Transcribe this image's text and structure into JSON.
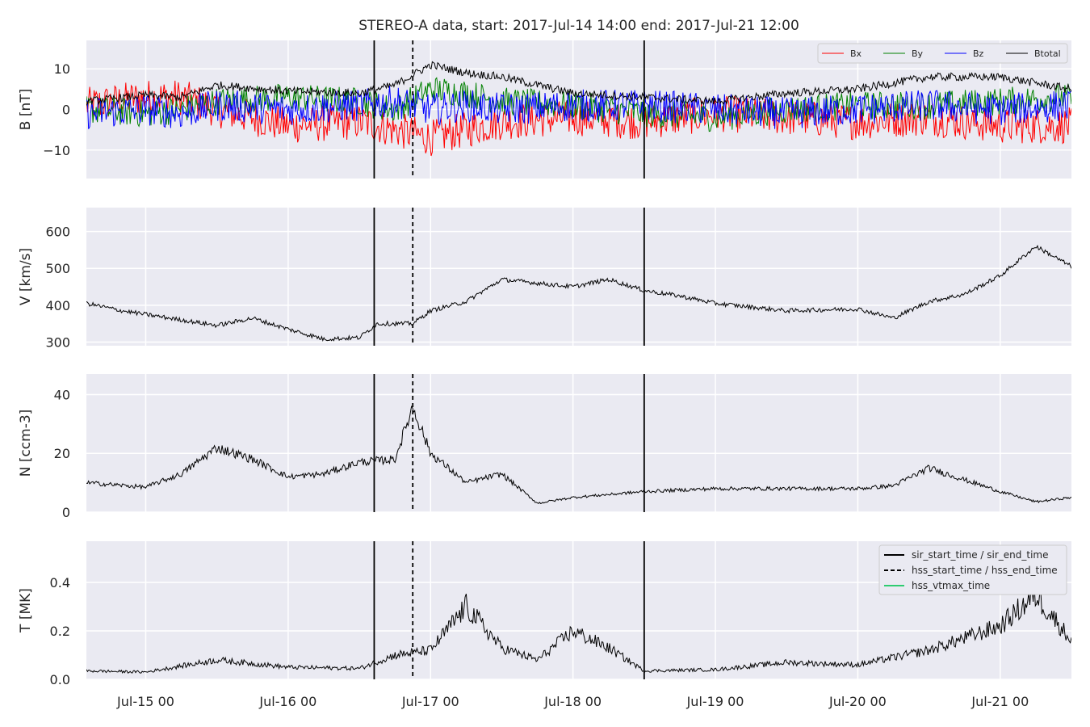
{
  "figure_title": "STEREO-A data, start: 2017-Jul-14 14:00  end: 2017-Jul-21 12:00",
  "x_tick_labels": [
    "Jul-15 00",
    "Jul-16 00",
    "Jul-17 00",
    "Jul-18 00",
    "Jul-19 00",
    "Jul-20 00",
    "Jul-21 00"
  ],
  "colors": {
    "Bx": "#ff0000",
    "By": "#008000",
    "Bz": "#0000ff",
    "Btotal": "#000000",
    "hss_vtmax": "#2ecc71",
    "grid": "#ffffff",
    "panel_bg": "#eaeaf2"
  },
  "markers": {
    "sir_start_time": "2017-07-16 14:30",
    "hss_start_time": "2017-07-16 21:00",
    "sir_end_time": "2017-07-18 12:00"
  },
  "chart_data": [
    {
      "type": "line",
      "ylabel": "B [nT]",
      "ylim": [
        -17,
        17
      ],
      "yticks": [
        -10,
        0,
        10
      ],
      "legend_position": "top-right",
      "legend": [
        "Bx",
        "By",
        "Bz",
        "Btotal"
      ],
      "series": [
        {
          "name": "Bx",
          "x": [
            "07-14 14:00",
            "07-15 00:00",
            "07-15 06:00",
            "07-15 12:00",
            "07-16 00:00",
            "07-16 12:00",
            "07-16 18:00",
            "07-17 00:00",
            "07-17 06:00",
            "07-17 12:00",
            "07-18 00:00",
            "07-18 12:00",
            "07-19 00:00",
            "07-19 12:00",
            "07-20 00:00",
            "07-20 12:00",
            "07-21 00:00",
            "07-21 12:00"
          ],
          "values": [
            1,
            3,
            3,
            0,
            -4,
            -3,
            -5,
            -7,
            -5,
            -3,
            -2,
            -3,
            -1,
            -2,
            -3,
            -2,
            -4,
            -4
          ]
        },
        {
          "name": "By",
          "x": [
            "07-14 14:00",
            "07-15 00:00",
            "07-15 06:00",
            "07-15 12:00",
            "07-16 00:00",
            "07-16 12:00",
            "07-16 18:00",
            "07-17 00:00",
            "07-17 06:00",
            "07-17 12:00",
            "07-18 00:00",
            "07-18 12:00",
            "07-19 00:00",
            "07-19 12:00",
            "07-20 00:00",
            "07-20 12:00",
            "07-21 00:00",
            "07-21 12:00"
          ],
          "values": [
            0,
            -1,
            0,
            2,
            3,
            2,
            0,
            5,
            4,
            2,
            1,
            -1,
            -2,
            0,
            1,
            1,
            2,
            3
          ]
        },
        {
          "name": "Bz",
          "x": [
            "07-14 14:00",
            "07-15 00:00",
            "07-15 06:00",
            "07-15 12:00",
            "07-16 00:00",
            "07-16 12:00",
            "07-16 18:00",
            "07-17 00:00",
            "07-17 06:00",
            "07-17 12:00",
            "07-18 00:00",
            "07-18 12:00",
            "07-19 00:00",
            "07-19 12:00",
            "07-20 00:00",
            "07-20 12:00",
            "07-21 00:00",
            "07-21 12:00"
          ],
          "values": [
            -1,
            0,
            -1,
            1,
            0,
            1,
            2,
            0,
            1,
            0,
            1,
            1,
            0,
            -1,
            0,
            1,
            0,
            1
          ]
        },
        {
          "name": "Btotal",
          "x": [
            "07-14 14:00",
            "07-15 00:00",
            "07-15 06:00",
            "07-15 12:00",
            "07-16 00:00",
            "07-16 12:00",
            "07-16 18:00",
            "07-17 00:00",
            "07-17 06:00",
            "07-17 12:00",
            "07-18 00:00",
            "07-18 12:00",
            "07-19 00:00",
            "07-19 12:00",
            "07-20 00:00",
            "07-20 12:00",
            "07-21 00:00",
            "07-21 12:00"
          ],
          "values": [
            2,
            3.5,
            3,
            6,
            4.5,
            4,
            6,
            11,
            9,
            8,
            4,
            3,
            2,
            4,
            5,
            8,
            8,
            5
          ]
        }
      ]
    },
    {
      "type": "line",
      "ylabel": "V [km/s]",
      "ylim": [
        290,
        665
      ],
      "yticks": [
        300,
        400,
        500,
        600
      ],
      "series": [
        {
          "x": [
            "07-14 14:00",
            "07-14 20:00",
            "07-15 06:00",
            "07-15 12:00",
            "07-15 18:00",
            "07-16 00:00",
            "07-16 06:00",
            "07-16 12:00",
            "07-16 15:00",
            "07-16 21:00",
            "07-17 00:00",
            "07-17 06:00",
            "07-17 12:00",
            "07-18 00:00",
            "07-18 06:00",
            "07-18 12:00",
            "07-18 18:00",
            "07-19 00:00",
            "07-19 12:00",
            "07-20 00:00",
            "07-20 06:00",
            "07-20 12:00",
            "07-20 18:00",
            "07-21 00:00",
            "07-21 06:00",
            "07-21 12:00"
          ],
          "values": [
            405,
            385,
            360,
            345,
            365,
            335,
            308,
            312,
            350,
            350,
            385,
            410,
            470,
            450,
            470,
            440,
            425,
            405,
            385,
            390,
            365,
            410,
            430,
            480,
            560,
            505
          ]
        }
      ]
    },
    {
      "type": "line",
      "ylabel": "N [ccm-3]",
      "ylim": [
        0,
        47
      ],
      "yticks": [
        0,
        20,
        40
      ],
      "series": [
        {
          "x": [
            "07-14 14:00",
            "07-15 00:00",
            "07-15 06:00",
            "07-15 12:00",
            "07-15 18:00",
            "07-16 00:00",
            "07-16 06:00",
            "07-16 12:00",
            "07-16 18:00",
            "07-16 21:00",
            "07-17 00:00",
            "07-17 06:00",
            "07-17 12:00",
            "07-17 18:00",
            "07-18 00:00",
            "07-18 06:00",
            "07-18 12:00",
            "07-19 00:00",
            "07-19 12:00",
            "07-20 00:00",
            "07-20 06:00",
            "07-20 12:00",
            "07-20 18:00",
            "07-21 00:00",
            "07-21 06:00",
            "07-21 12:00"
          ],
          "values": [
            10,
            8.5,
            13,
            22,
            18,
            12,
            13,
            17,
            18,
            36,
            20,
            10,
            13,
            3,
            5,
            6,
            7,
            8,
            8,
            8,
            9,
            15,
            11,
            7,
            3.5,
            5
          ]
        }
      ]
    },
    {
      "type": "line",
      "ylabel": "T [MK]",
      "ylim": [
        0,
        0.57
      ],
      "yticks": [
        0.0,
        0.2,
        0.4
      ],
      "legend_position": "top-right",
      "legend": [
        "sir_start_time / sir_end_time",
        "hss_start_time / hss_end_time",
        "hss_vtmax_time"
      ],
      "series": [
        {
          "x": [
            "07-14 14:00",
            "07-15 00:00",
            "07-15 12:00",
            "07-16 00:00",
            "07-16 12:00",
            "07-16 18:00",
            "07-17 00:00",
            "07-17 06:00",
            "07-17 12:00",
            "07-17 18:00",
            "07-18 00:00",
            "07-18 06:00",
            "07-18 12:00",
            "07-19 00:00",
            "07-19 12:00",
            "07-20 00:00",
            "07-20 12:00",
            "07-21 00:00",
            "07-21 06:00",
            "07-21 12:00"
          ],
          "values": [
            0.035,
            0.03,
            0.08,
            0.05,
            0.045,
            0.1,
            0.12,
            0.3,
            0.13,
            0.08,
            0.2,
            0.13,
            0.035,
            0.04,
            0.07,
            0.06,
            0.12,
            0.22,
            0.35,
            0.16
          ]
        }
      ]
    }
  ]
}
